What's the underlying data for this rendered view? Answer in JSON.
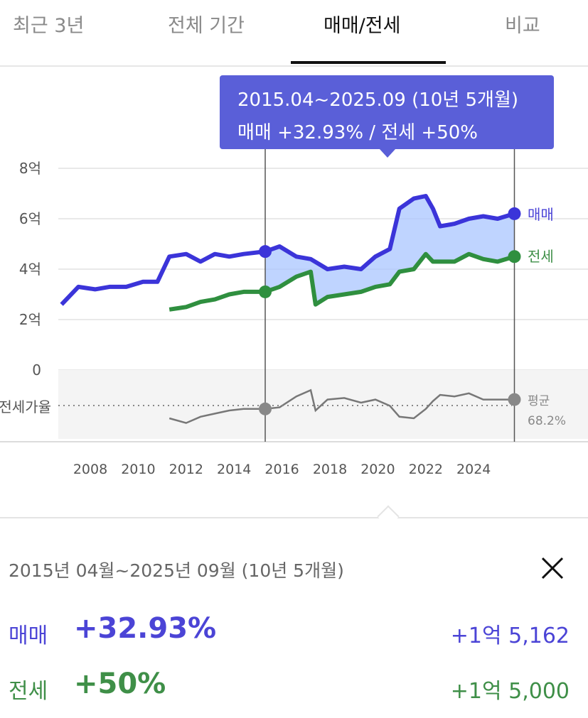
{
  "tabs": [
    {
      "label": "최근 3년",
      "active": false
    },
    {
      "label": "전체 기간",
      "active": false
    },
    {
      "label": "매매/전세",
      "active": true
    },
    {
      "label": "비교",
      "active": false
    }
  ],
  "tooltip": {
    "period": "2015.04~2025.09 (10년 5개월)",
    "change": "매매 +32.93%  /  전세 +50%"
  },
  "chart": {
    "y_ticks": [
      "8억",
      "6억",
      "4억",
      "2억",
      "0"
    ],
    "ratio_label": "전세가율",
    "x_ticks": [
      "2008",
      "2010",
      "2012",
      "2014",
      "2016",
      "2018",
      "2020",
      "2022",
      "2024"
    ],
    "series_labels": {
      "sale": "매매",
      "jeonse": "전세"
    },
    "avg_label": "평균",
    "avg_value": "68.2%",
    "colors": {
      "sale": "#3b34d9",
      "jeonse": "#2f8f3f",
      "range_fill": "#a9c6ff",
      "ratio": "#777777"
    }
  },
  "chart_data": {
    "type": "line",
    "unit": "억",
    "ylim": [
      0,
      8
    ],
    "series": [
      {
        "name": "매매",
        "x": [
          2006.8,
          2007.5,
          2008.2,
          2008.8,
          2009.5,
          2010.2,
          2010.8,
          2011.3,
          2012.0,
          2012.6,
          2013.2,
          2013.8,
          2014.4,
          2015.3,
          2015.9,
          2016.6,
          2017.2,
          2017.9,
          2018.6,
          2019.3,
          2019.9,
          2020.5,
          2020.9,
          2021.5,
          2022.0,
          2022.3,
          2022.6,
          2023.2,
          2023.8,
          2024.4,
          2025.0,
          2025.7
        ],
        "y": [
          2.6,
          3.3,
          3.2,
          3.3,
          3.3,
          3.5,
          3.5,
          4.5,
          4.6,
          4.3,
          4.6,
          4.5,
          4.6,
          4.7,
          4.9,
          4.5,
          4.4,
          4.0,
          4.1,
          4.0,
          4.5,
          4.8,
          6.4,
          6.8,
          6.9,
          6.4,
          5.7,
          5.8,
          6.0,
          6.1,
          6.0,
          6.2
        ]
      },
      {
        "name": "전세",
        "x": [
          2011.3,
          2012.0,
          2012.6,
          2013.2,
          2013.8,
          2014.4,
          2015.3,
          2015.9,
          2016.6,
          2017.2,
          2017.4,
          2017.9,
          2018.6,
          2019.3,
          2019.9,
          2020.5,
          2020.9,
          2021.5,
          2022.0,
          2022.3,
          2022.6,
          2023.2,
          2023.8,
          2024.4,
          2025.0,
          2025.7
        ],
        "y": [
          2.4,
          2.5,
          2.7,
          2.8,
          3.0,
          3.1,
          3.1,
          3.3,
          3.7,
          3.9,
          2.6,
          2.9,
          3.0,
          3.1,
          3.3,
          3.4,
          3.9,
          4.0,
          4.6,
          4.3,
          4.3,
          4.3,
          4.6,
          4.4,
          4.3,
          4.5
        ]
      },
      {
        "name": "전세가율",
        "x": [
          2011.3,
          2012.0,
          2012.6,
          2013.2,
          2013.8,
          2014.4,
          2015.3,
          2015.9,
          2016.6,
          2017.2,
          2017.4,
          2017.9,
          2018.6,
          2019.3,
          2019.9,
          2020.5,
          2020.9,
          2021.5,
          2022.0,
          2022.3,
          2022.6,
          2023.2,
          2023.8,
          2024.4,
          2025.0,
          2025.7
        ],
        "y": [
          60,
          57,
          61,
          63,
          65,
          66,
          66,
          67,
          74,
          78,
          65,
          72,
          73,
          70,
          72,
          68,
          61,
          60,
          66,
          71,
          75,
          74,
          76,
          72,
          72,
          72
        ]
      }
    ],
    "selection": {
      "start": "2015.04",
      "end": "2025.09"
    }
  },
  "summary": {
    "period": "2015년 04월~2025년 09월 (10년 5개월)",
    "sale": {
      "label": "매매",
      "pct": "+32.93%",
      "amount": "+1억 5,162"
    },
    "jeonse": {
      "label": "전세",
      "pct": "+50%",
      "amount": "+1억 5,000"
    }
  }
}
